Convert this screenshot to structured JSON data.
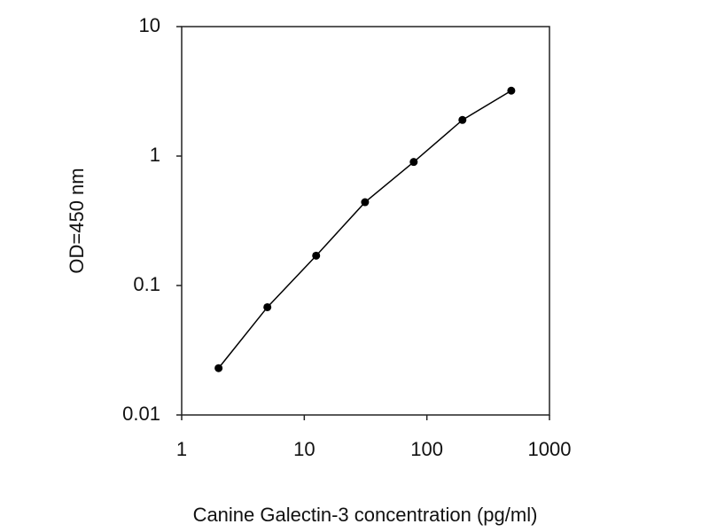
{
  "chart_data": {
    "type": "line",
    "xlabel": "Canine Galectin-3 concentration (pg/ml)",
    "ylabel": "OD=450 nm",
    "x": [
      2,
      5,
      12.5,
      31.3,
      78.1,
      195,
      488
    ],
    "values": [
      0.023,
      0.068,
      0.17,
      0.44,
      0.9,
      1.9,
      3.2
    ],
    "color": "#000000",
    "xscale": "log",
    "yscale": "log",
    "xlim": [
      1,
      1000
    ],
    "ylim": [
      0.01,
      10
    ],
    "xticks": [
      1,
      10,
      100,
      1000
    ],
    "yticks": [
      0.01,
      0.1,
      1,
      10
    ],
    "grid": false,
    "markers": true
  }
}
